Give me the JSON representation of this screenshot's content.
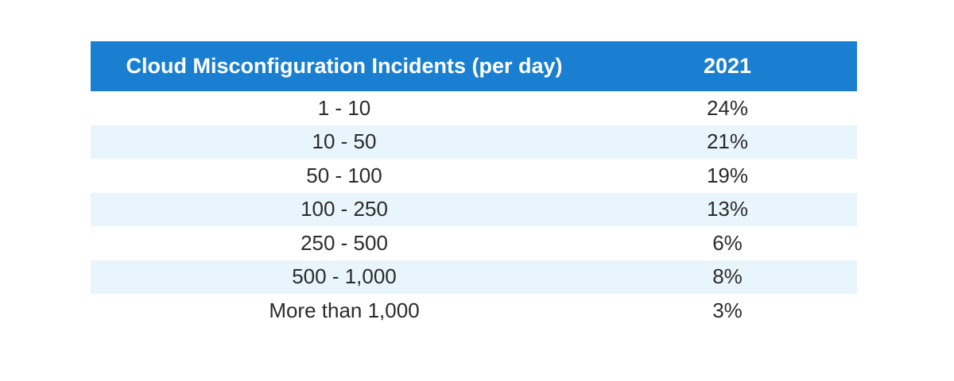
{
  "colors": {
    "header_bg": "#1a7fd1",
    "header_text": "#ffffff",
    "stripe_bg": "#e9f5fc",
    "body_text": "#2b2b2b"
  },
  "chart_data": {
    "type": "table",
    "columns": [
      "Cloud Misconfiguration Incidents (per day)",
      "2021"
    ],
    "rows": [
      [
        "1 - 10",
        "24%"
      ],
      [
        "10 - 50",
        "21%"
      ],
      [
        "50 - 100",
        "19%"
      ],
      [
        "100 - 250",
        "13%"
      ],
      [
        "250 - 500",
        "6%"
      ],
      [
        "500 - 1,000",
        "8%"
      ],
      [
        "More than 1,000",
        "3%"
      ]
    ],
    "values": [
      24,
      21,
      19,
      13,
      6,
      8,
      3
    ]
  }
}
